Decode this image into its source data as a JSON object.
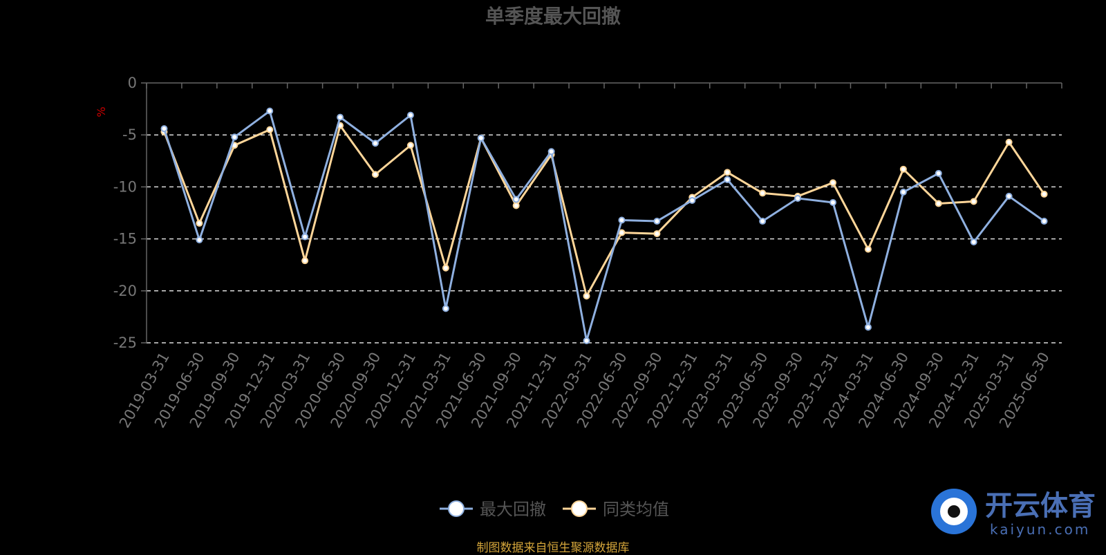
{
  "chart_data": {
    "type": "line",
    "title": "单季度最大回撤",
    "ylabel": "%",
    "ylim": [
      -25,
      0
    ],
    "yticks": [
      0,
      -5,
      -10,
      -15,
      -20,
      -25
    ],
    "grid": true,
    "legend_position": "bottom",
    "categories": [
      "2019-03-31",
      "2019-06-30",
      "2019-09-30",
      "2019-12-31",
      "2020-03-31",
      "2020-06-30",
      "2020-09-30",
      "2020-12-31",
      "2021-03-31",
      "2021-06-30",
      "2021-09-30",
      "2021-12-31",
      "2022-03-31",
      "2022-06-30",
      "2022-09-30",
      "2022-12-31",
      "2023-03-31",
      "2023-06-30",
      "2023-09-30",
      "2023-12-31",
      "2024-03-31",
      "2024-06-30",
      "2024-09-30",
      "2024-12-31",
      "2025-03-31",
      "2025-06-30"
    ],
    "series": [
      {
        "name": "最大回撤",
        "color": "#8fb0e0",
        "values": [
          -4.4,
          -15.1,
          -5.2,
          -2.7,
          -14.8,
          -3.3,
          -5.8,
          -3.1,
          -21.7,
          -5.3,
          -11.2,
          -6.6,
          -24.8,
          -13.2,
          -13.3,
          -11.3,
          -9.3,
          -13.3,
          -11.1,
          -11.5,
          -23.5,
          -10.5,
          -8.7,
          -15.3,
          -10.9,
          -13.3
        ]
      },
      {
        "name": "同类均值",
        "color": "#ffd699",
        "values": [
          -4.7,
          -13.5,
          -6.0,
          -4.5,
          -17.1,
          -4.1,
          -8.8,
          -6.0,
          -17.8,
          -5.3,
          -11.8,
          -6.9,
          -20.5,
          -14.4,
          -14.5,
          -11.0,
          -8.6,
          -10.6,
          -10.9,
          -9.6,
          -16.0,
          -8.3,
          -11.6,
          -11.4,
          -5.7,
          -10.7
        ]
      }
    ]
  },
  "footer": {
    "source": "制图数据来自恒生聚源数据库"
  },
  "watermark": {
    "cn": "开云体育",
    "en": "kaiyun.com"
  }
}
